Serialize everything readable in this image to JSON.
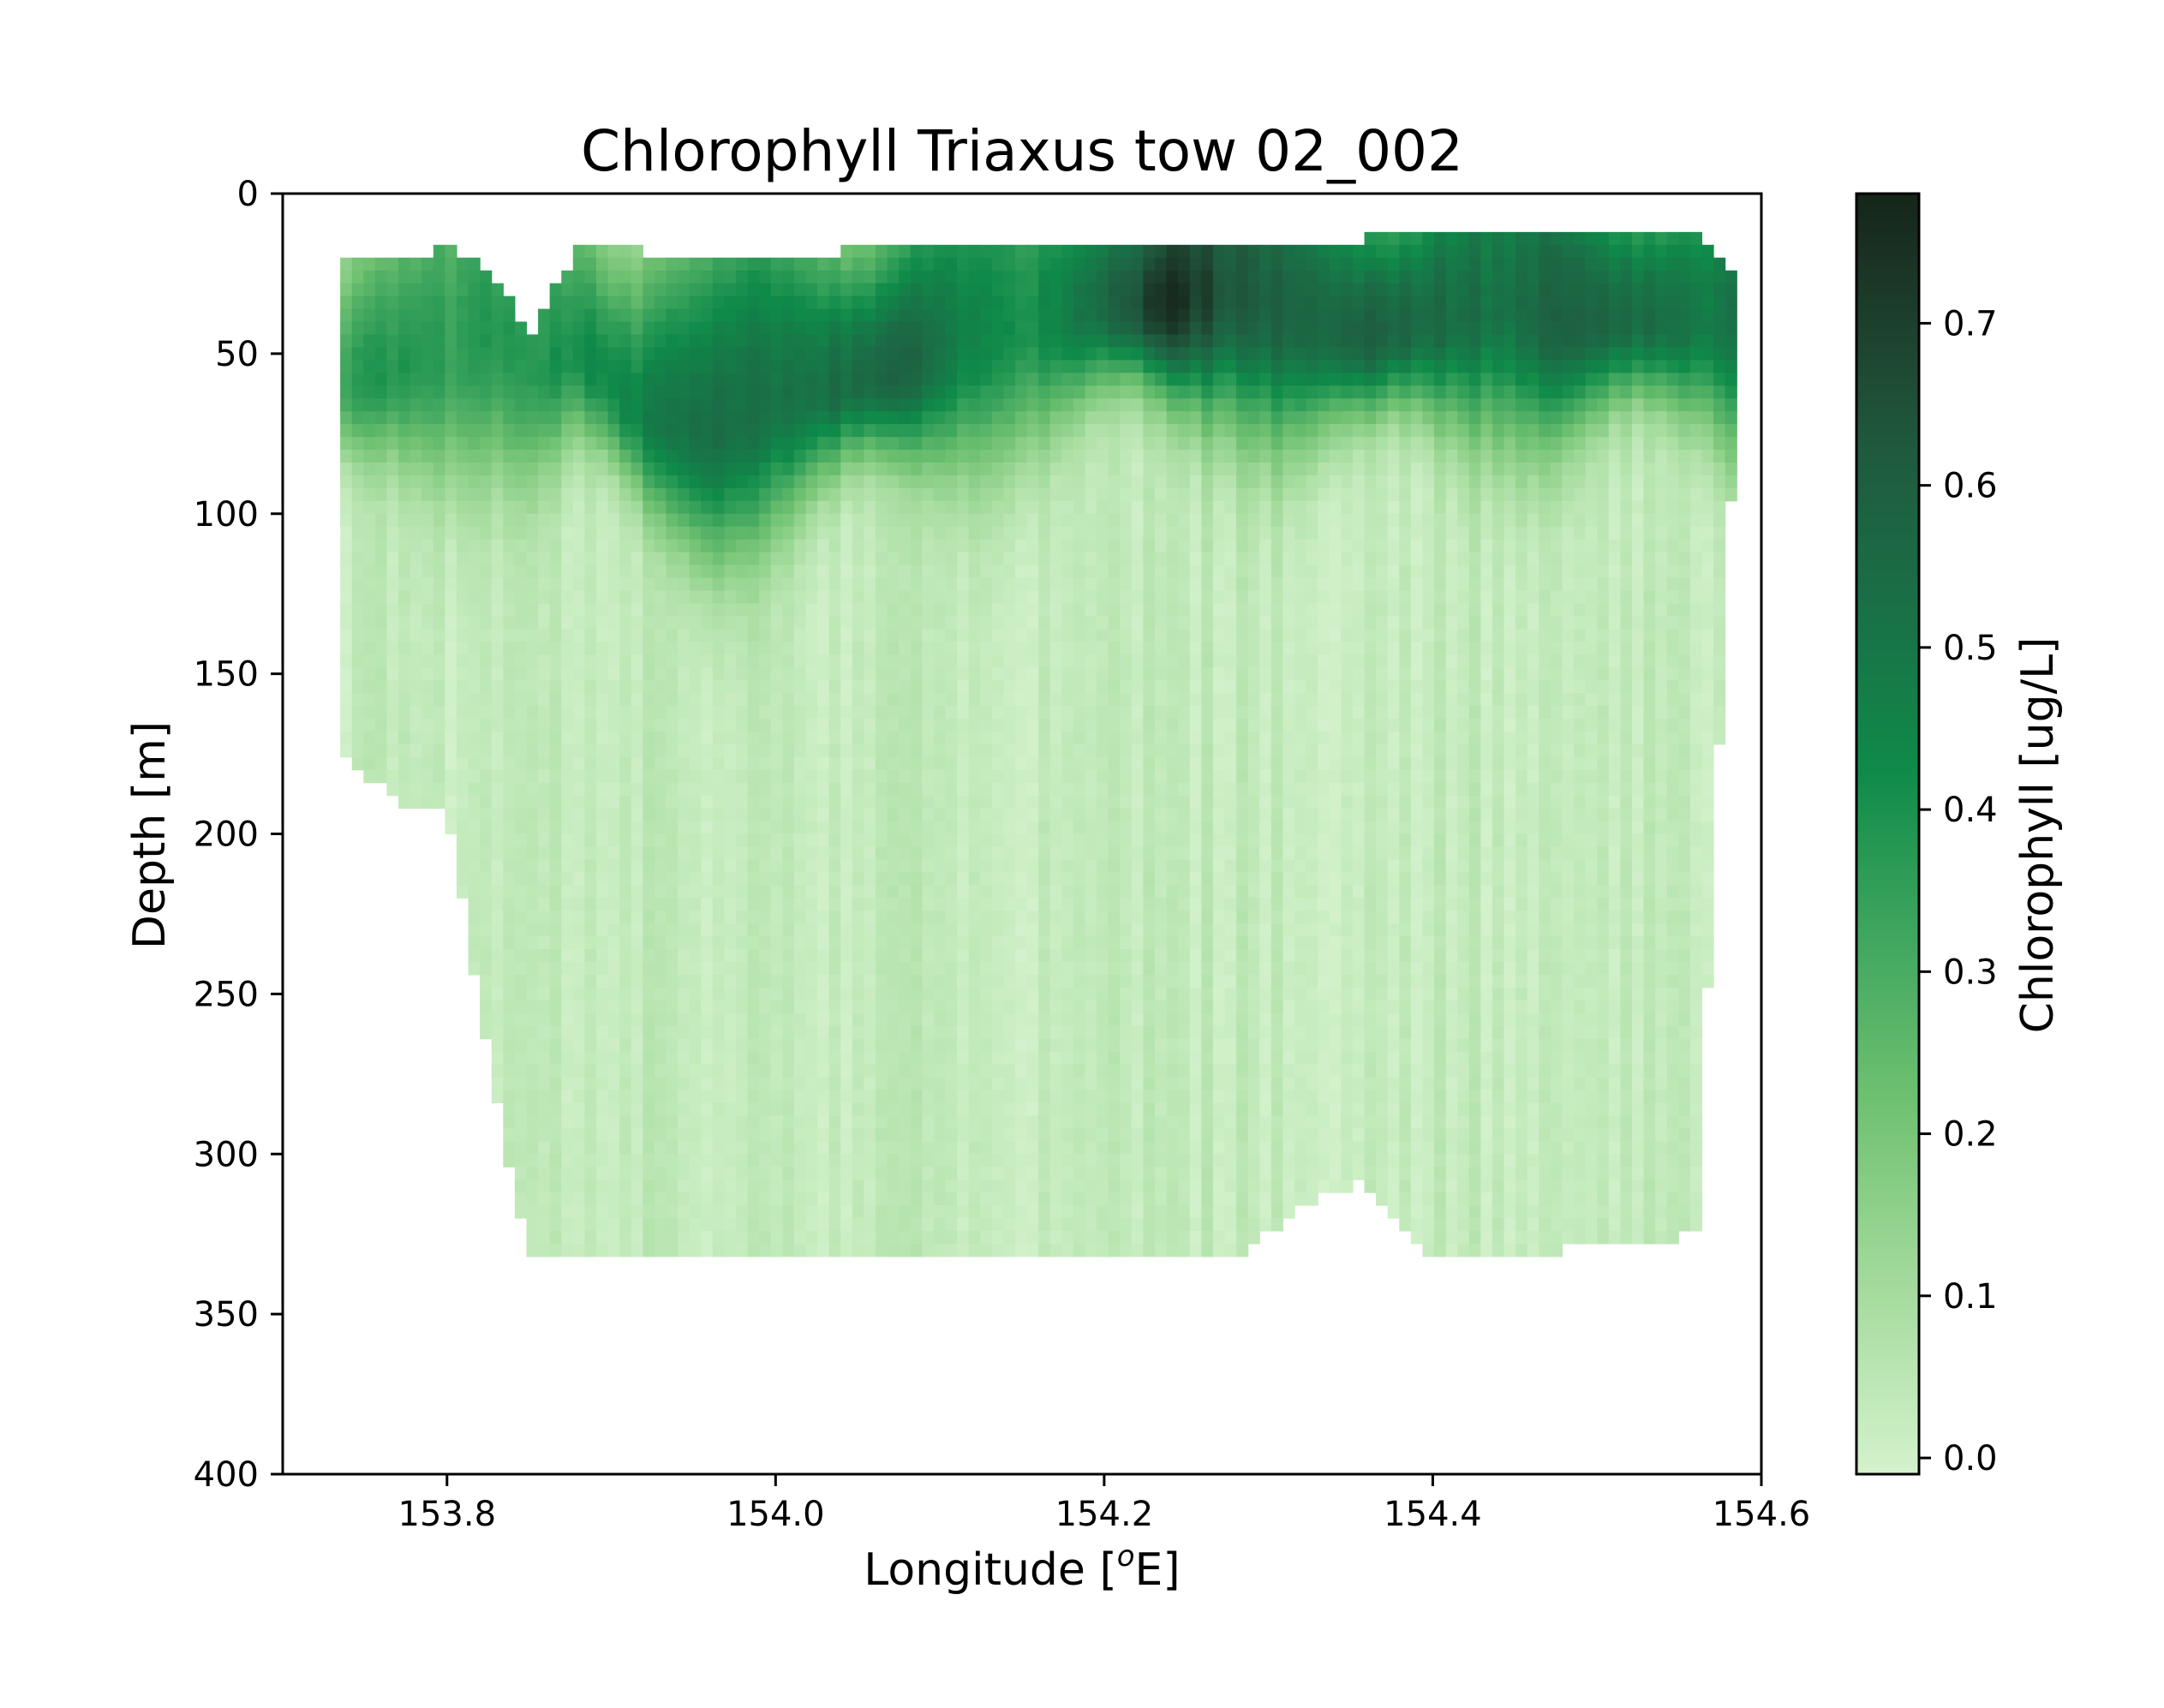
{
  "chart_data": {
    "type": "heatmap",
    "title": "Chlorophyll Triaxus tow 02_002",
    "xlabel_main": "Longitude [",
    "xlabel_sup": "o",
    "xlabel_tail": "E]",
    "ylabel": "Depth [m]",
    "colorbar_label": "Chlorophyll [ug/L]",
    "xlim": [
      153.7,
      154.6
    ],
    "ylim": [
      400,
      0
    ],
    "y_inverted": true,
    "x_ticks": [
      "153.8",
      "154.0",
      "154.2",
      "154.4",
      "154.6"
    ],
    "y_ticks": [
      "0",
      "50",
      "100",
      "150",
      "200",
      "250",
      "300",
      "350",
      "400"
    ],
    "colorbar_ticks": [
      "0.0",
      "0.1",
      "0.2",
      "0.3",
      "0.4",
      "0.5",
      "0.6",
      "0.7"
    ],
    "colorbar_range": [
      -0.01,
      0.78
    ],
    "colormap": "Greens",
    "colormap_stops": [
      "#d4f2cd",
      "#a6dc9e",
      "#6cbf6f",
      "#34a05a",
      "#0f8a49",
      "#1a6f47",
      "#1f5a3e",
      "#1c3a29",
      "#152519"
    ],
    "grid": false,
    "section_profile": [
      {
        "lon": 153.735,
        "top": 19,
        "bottom": 172,
        "dcm": 60,
        "dcm_chl": 0.35
      },
      {
        "lon": 153.77,
        "top": 22,
        "bottom": 188,
        "dcm": 55,
        "dcm_chl": 0.38
      },
      {
        "lon": 153.8,
        "top": 16,
        "bottom": 190,
        "dcm": 50,
        "dcm_chl": 0.36
      },
      {
        "lon": 153.83,
        "top": 26,
        "bottom": 282,
        "dcm": 45,
        "dcm_chl": 0.38
      },
      {
        "lon": 153.85,
        "top": 44,
        "bottom": 331,
        "dcm": 55,
        "dcm_chl": 0.35
      },
      {
        "lon": 153.88,
        "top": 17,
        "bottom": 331,
        "dcm": 50,
        "dcm_chl": 0.42
      },
      {
        "lon": 153.92,
        "top": 18,
        "bottom": 331,
        "dcm": 70,
        "dcm_chl": 0.45
      },
      {
        "lon": 153.96,
        "top": 19,
        "bottom": 331,
        "dcm": 75,
        "dcm_chl": 0.55
      },
      {
        "lon": 154.0,
        "top": 19,
        "bottom": 331,
        "dcm": 65,
        "dcm_chl": 0.5
      },
      {
        "lon": 154.04,
        "top": 18,
        "bottom": 331,
        "dcm": 60,
        "dcm_chl": 0.55
      },
      {
        "lon": 154.08,
        "top": 18,
        "bottom": 331,
        "dcm": 55,
        "dcm_chl": 0.56
      },
      {
        "lon": 154.12,
        "top": 16,
        "bottom": 331,
        "dcm": 45,
        "dcm_chl": 0.45
      },
      {
        "lon": 154.16,
        "top": 16,
        "bottom": 332,
        "dcm": 40,
        "dcm_chl": 0.42
      },
      {
        "lon": 154.2,
        "top": 17,
        "bottom": 331,
        "dcm": 35,
        "dcm_chl": 0.55
      },
      {
        "lon": 154.24,
        "top": 17,
        "bottom": 331,
        "dcm": 35,
        "dcm_chl": 0.76
      },
      {
        "lon": 154.28,
        "top": 17,
        "bottom": 332,
        "dcm": 30,
        "dcm_chl": 0.62
      },
      {
        "lon": 154.32,
        "top": 17,
        "bottom": 314,
        "dcm": 40,
        "dcm_chl": 0.58
      },
      {
        "lon": 154.36,
        "top": 14,
        "bottom": 307,
        "dcm": 45,
        "dcm_chl": 0.6
      },
      {
        "lon": 154.4,
        "top": 14,
        "bottom": 331,
        "dcm": 40,
        "dcm_chl": 0.55
      },
      {
        "lon": 154.44,
        "top": 14,
        "bottom": 330,
        "dcm": 35,
        "dcm_chl": 0.52
      },
      {
        "lon": 154.48,
        "top": 12,
        "bottom": 328,
        "dcm": 40,
        "dcm_chl": 0.6
      },
      {
        "lon": 154.52,
        "top": 14,
        "bottom": 326,
        "dcm": 40,
        "dcm_chl": 0.55
      },
      {
        "lon": 154.56,
        "top": 12,
        "bottom": 323,
        "dcm": 40,
        "dcm_chl": 0.5
      },
      {
        "lon": 154.585,
        "top": 28,
        "bottom": 55,
        "dcm": 40,
        "dcm_chl": 0.5
      }
    ]
  }
}
